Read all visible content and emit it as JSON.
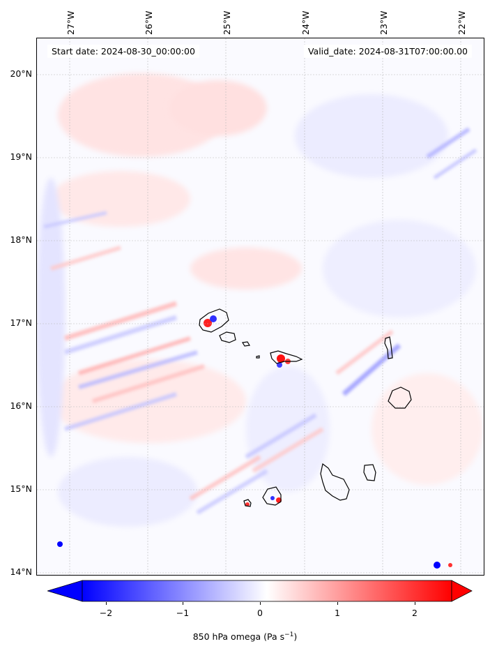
{
  "map": {
    "longitude_labels": [
      "27°W",
      "26°W",
      "25°W",
      "24°W",
      "23°W",
      "22°W"
    ],
    "latitude_labels": [
      "20°N",
      "19°N",
      "18°N",
      "17°N",
      "16°N",
      "15°N",
      "14°N"
    ],
    "start_date_text": "Start date: 2024-08-30_00:00:00",
    "valid_date_text": "Valid_date: 2024-08-31T07:00:00.00",
    "field": "850 hPa omega",
    "colormap": "bwr",
    "colors": {
      "negative": "#0000ff",
      "neutral": "#ffffff",
      "positive": "#ff0000",
      "coastline": "#000000",
      "gridline": "#b0b0b0"
    }
  },
  "colorbar": {
    "tick_labels": [
      "−2",
      "−1",
      "0",
      "1",
      "2"
    ],
    "tick_values": [
      -2,
      -1,
      0,
      1,
      2
    ],
    "range": [
      -2.5,
      2.5
    ],
    "label_main": "850 hPa omega (Pa s",
    "label_exp": "−1",
    "label_close": ")",
    "extend": "both"
  }
}
